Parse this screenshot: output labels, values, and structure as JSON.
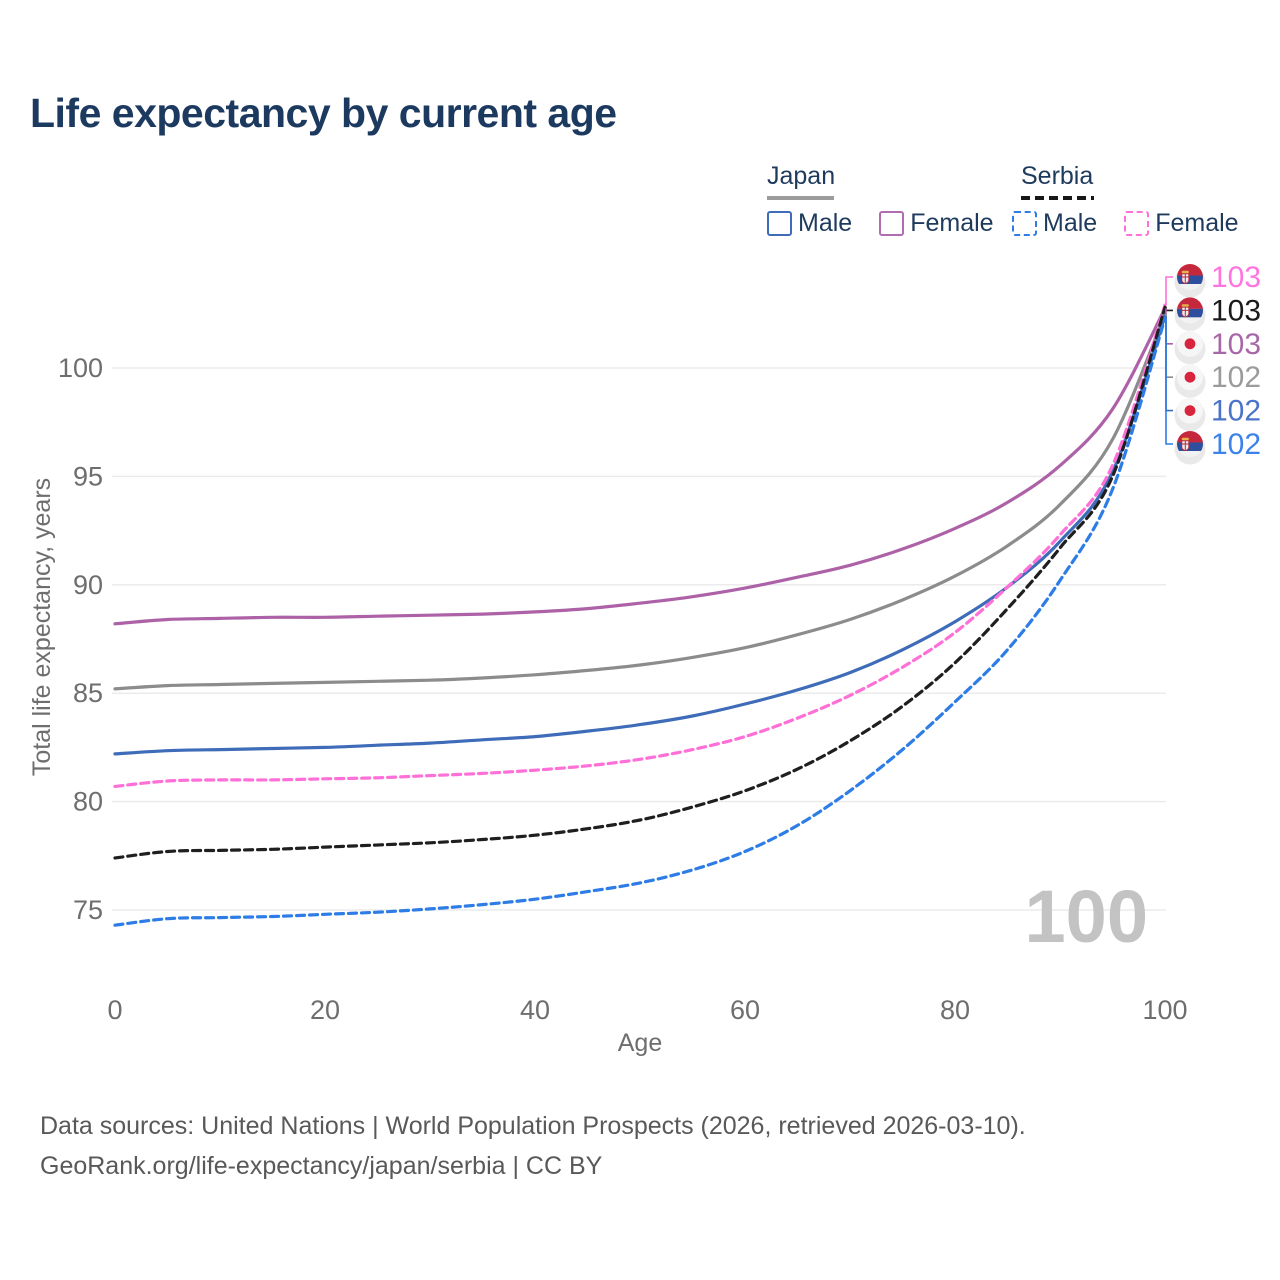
{
  "title": "Life expectancy by current age",
  "legend": {
    "groups": [
      {
        "name": "Japan",
        "line_style": "solid",
        "line_color": "#9c9c9c",
        "items": [
          {
            "label": "Male",
            "color": "#3e6cb8",
            "dashed": false
          },
          {
            "label": "Female",
            "color": "#b06cb0",
            "dashed": false
          }
        ]
      },
      {
        "name": "Serbia",
        "line_style": "dashed",
        "line_color": "#171717",
        "items": [
          {
            "label": "Male",
            "color": "#2e7de6",
            "dashed": true
          },
          {
            "label": "Female",
            "color": "#ff6fd8",
            "dashed": true
          }
        ]
      }
    ]
  },
  "footer": {
    "line1": "Data sources: United Nations | World Population Prospects (2026, retrieved 2026-03-10).",
    "line2": "GeoRank.org/life-expectancy/japan/serbia | CC BY"
  },
  "chart_data": {
    "type": "line",
    "title": "Life expectancy by current age",
    "xlabel": "Age",
    "ylabel": "Total life expectancy, years",
    "x_ticks": [
      0,
      20,
      40,
      60,
      80,
      100
    ],
    "y_ticks": [
      75,
      80,
      85,
      90,
      95,
      100
    ],
    "xlim": [
      0,
      100
    ],
    "ylim": [
      73,
      104
    ],
    "grid": "horizontal",
    "legend_position": "top-right",
    "age_watermark": "100",
    "x": [
      0,
      5,
      10,
      15,
      20,
      25,
      30,
      35,
      40,
      45,
      50,
      55,
      60,
      65,
      70,
      75,
      80,
      85,
      90,
      95,
      100
    ],
    "series": [
      {
        "name": "Japan Female",
        "country": "Japan",
        "sex": "Female",
        "flag": "japan",
        "color": "#ad62a8",
        "label_color": "#a868a8",
        "dashed": false,
        "end_label": "103",
        "values": [
          88.2,
          88.4,
          88.45,
          88.5,
          88.5,
          88.55,
          88.6,
          88.65,
          88.75,
          88.9,
          89.15,
          89.45,
          89.85,
          90.35,
          90.9,
          91.65,
          92.6,
          93.8,
          95.5,
          98.1,
          102.75
        ]
      },
      {
        "name": "Japan Both sexes",
        "country": "Japan",
        "sex": "Both",
        "flag": "japan",
        "color": "#8c8c8c",
        "label_color": "#9b9b9b",
        "dashed": false,
        "end_label": "102",
        "values": [
          85.2,
          85.35,
          85.4,
          85.45,
          85.5,
          85.55,
          85.6,
          85.7,
          85.85,
          86.05,
          86.3,
          86.65,
          87.1,
          87.7,
          88.4,
          89.3,
          90.4,
          91.8,
          93.7,
          96.7,
          102.5
        ]
      },
      {
        "name": "Japan Male",
        "country": "Japan",
        "sex": "Male",
        "flag": "japan",
        "color": "#3e6cb8",
        "label_color": "#4a74c9",
        "dashed": false,
        "end_label": "102",
        "values": [
          82.2,
          82.35,
          82.4,
          82.45,
          82.5,
          82.6,
          82.7,
          82.85,
          83.0,
          83.25,
          83.55,
          83.95,
          84.5,
          85.15,
          85.95,
          87.0,
          88.3,
          89.9,
          92.0,
          95.2,
          102.4
        ]
      },
      {
        "name": "Serbia Female",
        "country": "Serbia",
        "sex": "Female",
        "flag": "serbia",
        "color": "#ff6fd8",
        "label_color": "#ff74df",
        "dashed": true,
        "end_label": "103",
        "values": [
          80.7,
          80.95,
          81.0,
          81.0,
          81.05,
          81.1,
          81.2,
          81.3,
          81.45,
          81.65,
          81.95,
          82.4,
          83.0,
          83.85,
          84.9,
          86.2,
          87.8,
          89.9,
          92.3,
          95.5,
          102.9
        ]
      },
      {
        "name": "Serbia Both sexes",
        "country": "Serbia",
        "sex": "Both",
        "flag": "serbia",
        "color": "#1f1f1f",
        "label_color": "#1a1a1a",
        "dashed": true,
        "end_label": "103",
        "values": [
          77.4,
          77.7,
          77.75,
          77.8,
          77.9,
          78.0,
          78.1,
          78.25,
          78.45,
          78.75,
          79.15,
          79.75,
          80.5,
          81.5,
          82.8,
          84.4,
          86.4,
          88.9,
          91.7,
          95.0,
          102.8
        ]
      },
      {
        "name": "Serbia Male",
        "country": "Serbia",
        "sex": "Male",
        "flag": "serbia",
        "color": "#2e7de6",
        "label_color": "#3b82ea",
        "dashed": true,
        "end_label": "102",
        "values": [
          74.3,
          74.6,
          74.65,
          74.7,
          74.8,
          74.9,
          75.05,
          75.25,
          75.5,
          75.85,
          76.25,
          76.85,
          77.7,
          78.9,
          80.5,
          82.4,
          84.6,
          87.0,
          90.2,
          94.4,
          102.3
        ]
      }
    ]
  }
}
